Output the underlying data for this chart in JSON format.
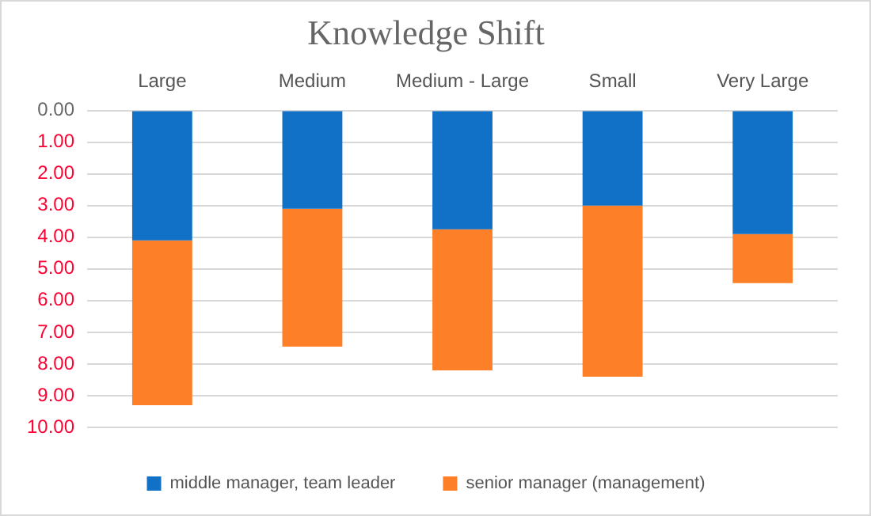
{
  "chart_data": {
    "type": "bar",
    "title": "Knowledge Shift",
    "stacked": true,
    "grid": "y",
    "legend": "bottom",
    "categories": [
      "Large",
      "Medium",
      "Medium - Large",
      "Small",
      "Very Large"
    ],
    "ylim": [
      10,
      0
    ],
    "yticks": [
      {
        "value": 0,
        "label": "0.00"
      },
      {
        "value": 1,
        "label": "1.00"
      },
      {
        "value": 2,
        "label": "2.00"
      },
      {
        "value": 3,
        "label": "3.00"
      },
      {
        "value": 4,
        "label": "4.00"
      },
      {
        "value": 5,
        "label": "5.00"
      },
      {
        "value": 6,
        "label": "6.00"
      },
      {
        "value": 7,
        "label": "7.00"
      },
      {
        "value": 8,
        "label": "8.00"
      },
      {
        "value": 9,
        "label": "9.00"
      },
      {
        "value": 10,
        "label": "10.00"
      }
    ],
    "series": [
      {
        "name": "middle manager, team leader",
        "color": "#1071c6",
        "values": [
          4.1,
          3.1,
          3.75,
          3.0,
          3.9
        ]
      },
      {
        "name": "senior manager (management)",
        "color": "#fd7f27",
        "values": [
          5.2,
          4.35,
          4.45,
          5.4,
          1.55
        ]
      }
    ]
  }
}
